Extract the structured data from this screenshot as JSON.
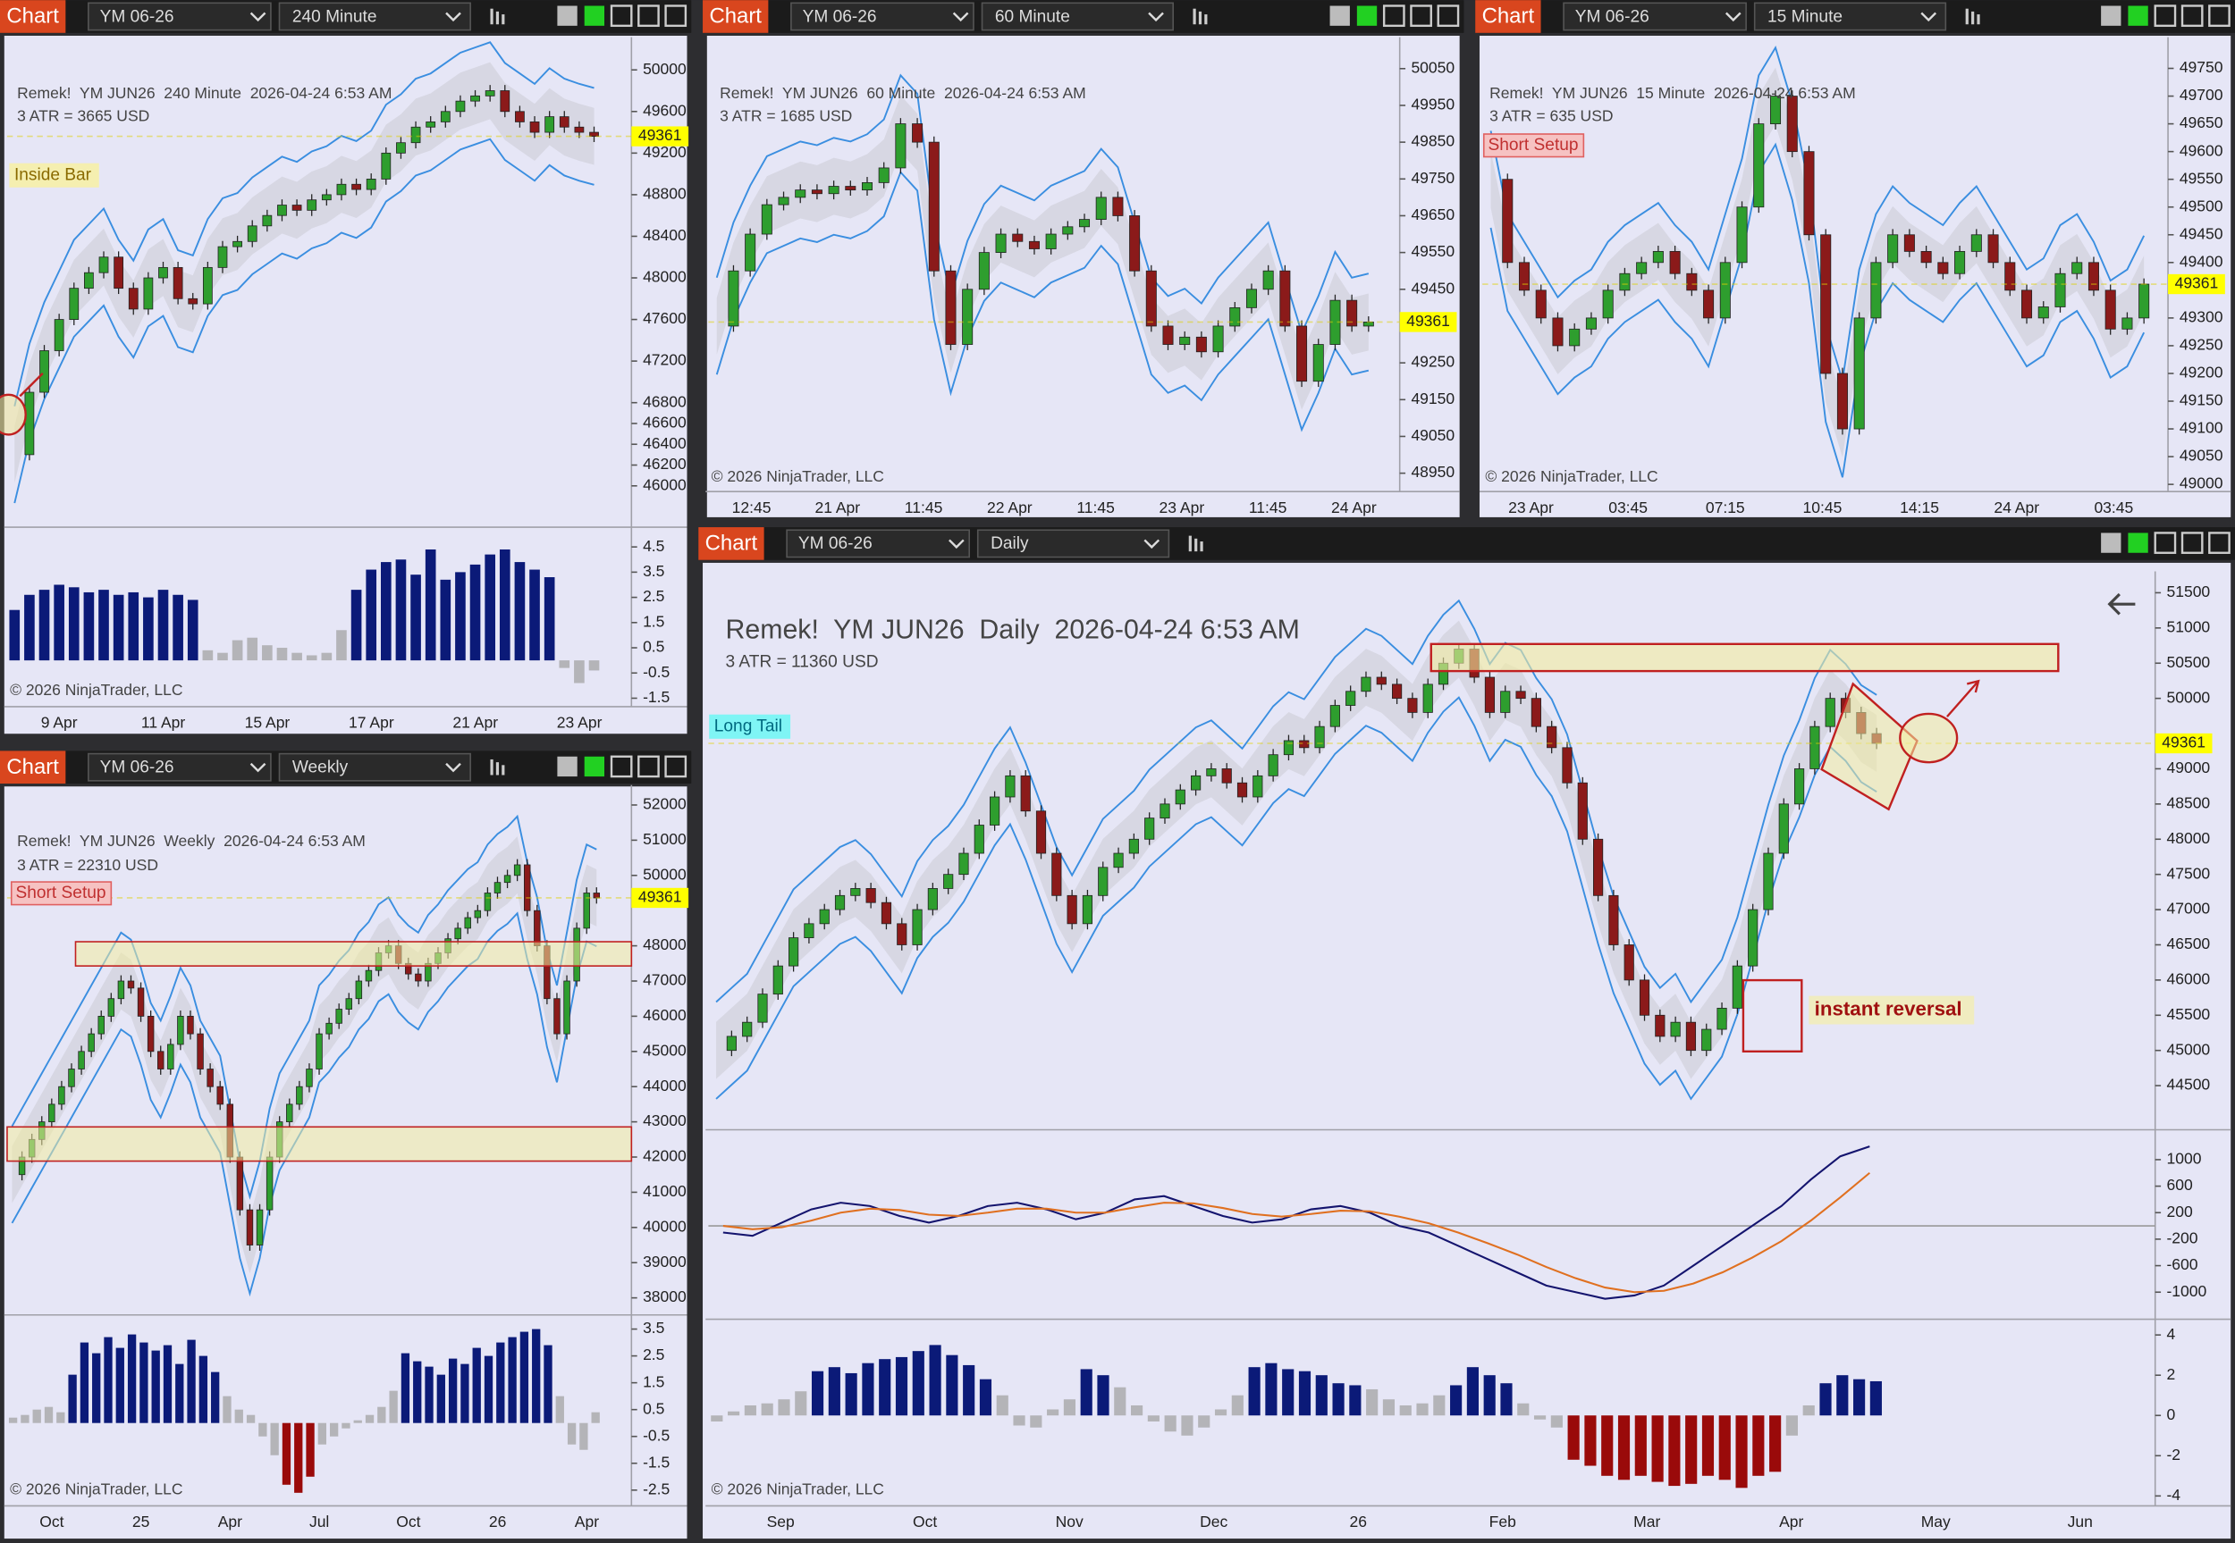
{
  "panels": [
    {
      "window": {
        "tab": "Chart",
        "instrument": "YM 06-26",
        "timeframe": "240 Minute"
      },
      "info": [
        "Remek!  YM JUN26  240 Minute  2026-04-24 6:53 AM",
        "3 ATR = 3665 USD"
      ],
      "tag": "Inside Bar",
      "price": {
        "ylim": [
          45671,
          50260
        ],
        "ticks": [
          50000,
          49600,
          49200,
          48800,
          48400,
          48000,
          47600,
          47200,
          46800,
          46600,
          46400,
          46200,
          46000
        ],
        "last": 49361,
        "closes": [
          46300,
          46900,
          47300,
          47600,
          47900,
          48050,
          48200,
          47900,
          47700,
          48000,
          48100,
          47800,
          47750,
          48100,
          48300,
          48350,
          48500,
          48600,
          48700,
          48650,
          48750,
          48800,
          48900,
          48850,
          48950,
          49200,
          49300,
          49450,
          49500,
          49600,
          49700,
          49750,
          49800,
          49600,
          49500,
          49400,
          49550,
          49450,
          49400,
          49361
        ]
      },
      "indicators": [
        {
          "ylim": [
            -1.78,
            5.17
          ],
          "ticks": [
            4.5,
            3.5,
            2.5,
            1.5,
            0.5,
            -0.5,
            -1.5
          ],
          "histogram": [
            2.0,
            2.6,
            2.8,
            3.0,
            2.9,
            2.7,
            2.8,
            2.6,
            2.7,
            2.5,
            2.8,
            2.6,
            2.4,
            0.4,
            0.3,
            0.8,
            0.9,
            0.6,
            0.5,
            0.3,
            0.2,
            0.3,
            1.2,
            2.8,
            3.6,
            3.9,
            4.0,
            3.4,
            4.4,
            3.2,
            3.5,
            3.8,
            4.2,
            4.4,
            3.9,
            3.6,
            3.3,
            -0.3,
            -0.9,
            -0.4
          ]
        }
      ],
      "time_axis": [
        "9 Apr",
        "11 Apr",
        "15 Apr",
        "17 Apr",
        "21 Apr",
        "23 Apr"
      ],
      "copyright": "© 2026 NinjaTrader, LLC"
    },
    {
      "window": {
        "tab": "Chart",
        "instrument": "YM 06-26",
        "timeframe": "60 Minute"
      },
      "info": [
        "Remek!  YM JUN26  60 Minute  2026-04-24 6:53 AM",
        "3 ATR = 1685 USD"
      ],
      "price": {
        "ylim": [
          48900,
          50120
        ],
        "ticks": [
          50050,
          49950,
          49850,
          49750,
          49650,
          49550,
          49450,
          49250,
          49150,
          49050,
          48950
        ],
        "last": 49361,
        "closes": [
          49350,
          49500,
          49600,
          49680,
          49700,
          49720,
          49710,
          49730,
          49720,
          49740,
          49780,
          49900,
          49850,
          49500,
          49300,
          49450,
          49550,
          49600,
          49580,
          49560,
          49600,
          49620,
          49640,
          49700,
          49650,
          49500,
          49350,
          49300,
          49320,
          49280,
          49350,
          49400,
          49450,
          49500,
          49350,
          49200,
          49300,
          49420,
          49350,
          49361
        ]
      },
      "time_axis": [
        "12:45",
        "21 Apr",
        "11:45",
        "22 Apr",
        "11:45",
        "23 Apr",
        "11:45",
        "24 Apr"
      ],
      "copyright": "© 2026 NinjaTrader, LLC"
    },
    {
      "window": {
        "tab": "Chart",
        "instrument": "YM 06-26",
        "timeframe": "15 Minute"
      },
      "info": [
        "Remek!  YM JUN26  15 Minute  2026-04-24 6:53 AM",
        "3 ATR = 635 USD"
      ],
      "tag": "Short Setup",
      "price": {
        "ylim": [
          48987,
          49796
        ],
        "ticks": [
          49750,
          49700,
          49650,
          49600,
          49550,
          49500,
          49450,
          49400,
          49300,
          49250,
          49200,
          49150,
          49100,
          49050,
          49000
        ],
        "last": 49361,
        "closes": [
          49550,
          49400,
          49350,
          49300,
          49250,
          49280,
          49300,
          49350,
          49380,
          49400,
          49420,
          49380,
          49350,
          49300,
          49400,
          49500,
          49650,
          49700,
          49600,
          49450,
          49200,
          49100,
          49300,
          49400,
          49450,
          49420,
          49400,
          49380,
          49420,
          49450,
          49400,
          49350,
          49300,
          49320,
          49380,
          49400,
          49350,
          49280,
          49300,
          49361
        ]
      },
      "time_axis": [
        "23 Apr",
        "03:45",
        "07:15",
        "10:45",
        "14:15",
        "24 Apr",
        "03:45"
      ],
      "copyright": "© 2026 NinjaTrader, LLC"
    },
    {
      "window": {
        "tab": "Chart",
        "instrument": "YM 06-26",
        "timeframe": "Weekly"
      },
      "info": [
        "Remek!  YM JUN26  Weekly  2026-04-24 6:53 AM",
        "3 ATR = 22310 USD"
      ],
      "tag": "Short Setup",
      "price": {
        "ylim": [
          37636,
          52405
        ],
        "ticks": [
          52000,
          51000,
          50000,
          48000,
          47000,
          46000,
          45000,
          44000,
          43000,
          42000,
          41000,
          40000,
          39000,
          38000
        ],
        "last": 49361,
        "closes": [
          41500,
          42000,
          42500,
          43000,
          43500,
          44000,
          44500,
          45000,
          45500,
          46000,
          46500,
          47000,
          46800,
          46000,
          45000,
          44500,
          45200,
          46000,
          45500,
          44500,
          44000,
          43500,
          42000,
          40500,
          39500,
          40500,
          42000,
          43000,
          43500,
          44000,
          44500,
          45500,
          45800,
          46200,
          46500,
          47000,
          47300,
          47800,
          48000,
          47500,
          47200,
          47000,
          47500,
          47800,
          48200,
          48500,
          48800,
          49000,
          49500,
          49800,
          50000,
          50300,
          49000,
          48000,
          46500,
          45500,
          47000,
          48500,
          49500,
          49361
        ]
      },
      "indicators": [
        {
          "ylim": [
            -2.98,
            3.92
          ],
          "ticks": [
            3.5,
            2.5,
            1.5,
            0.5,
            -0.5,
            -1.5,
            -2.5
          ],
          "histogram": [
            0.2,
            0.3,
            0.5,
            0.6,
            0.4,
            1.8,
            3.0,
            2.6,
            3.2,
            2.8,
            3.3,
            3.0,
            2.7,
            2.9,
            2.2,
            3.1,
            2.5,
            1.9,
            1.0,
            0.5,
            0.3,
            -0.5,
            -1.2,
            -2.3,
            -2.6,
            -2.0,
            -0.8,
            -0.5,
            -0.2,
            0.1,
            0.3,
            0.6,
            1.2,
            2.6,
            2.3,
            2.1,
            1.8,
            2.4,
            2.2,
            2.8,
            2.5,
            3.0,
            3.2,
            3.4,
            3.5,
            2.9,
            1.0,
            -0.8,
            -1.0,
            0.4
          ]
        }
      ],
      "time_axis": [
        "Oct",
        "25",
        "Apr",
        "Jul",
        "Oct",
        "26",
        "Apr"
      ],
      "copyright": "© 2026 NinjaTrader, LLC"
    },
    {
      "window": {
        "tab": "Chart",
        "instrument": "YM 06-26",
        "timeframe": "Daily"
      },
      "info": [
        "Remek!  YM JUN26  Daily  2026-04-24 6:53 AM",
        "3 ATR = 11360 USD"
      ],
      "tag": "Long Tail",
      "annotations": [
        "instant reversal"
      ],
      "price": {
        "ylim": [
          43934,
          51723
        ],
        "ticks": [
          51500,
          51000,
          50500,
          50000,
          49000,
          48500,
          48000,
          47500,
          47000,
          46500,
          46000,
          45500,
          45000,
          44500
        ],
        "last": 49361,
        "closes": [
          45000,
          45200,
          45400,
          45800,
          46200,
          46600,
          46800,
          47000,
          47200,
          47300,
          47100,
          46800,
          46500,
          47000,
          47300,
          47500,
          47800,
          48200,
          48600,
          48900,
          48400,
          47800,
          47200,
          46800,
          47200,
          47600,
          47800,
          48000,
          48300,
          48500,
          48700,
          48900,
          49000,
          48800,
          48600,
          48900,
          49200,
          49400,
          49300,
          49600,
          49900,
          50100,
          50300,
          50200,
          50000,
          49800,
          50200,
          50500,
          50700,
          50300,
          49800,
          50100,
          50000,
          49600,
          49300,
          48800,
          48000,
          47200,
          46500,
          46000,
          45500,
          45200,
          45400,
          45000,
          45300,
          45600,
          46200,
          47000,
          47800,
          48500,
          49000,
          49600,
          50000,
          49800,
          49500,
          49361
        ]
      },
      "indicators": [
        {
          "ylim": [
            -1387,
            1408
          ],
          "ticks": [
            1000,
            600,
            200,
            -200,
            -600,
            -1000
          ],
          "lines": [
            {
              "color": "#14146e",
              "values": [
                -100,
                -150,
                50,
                250,
                350,
                300,
                150,
                50,
                150,
                300,
                350,
                250,
                100,
                200,
                400,
                450,
                300,
                150,
                50,
                100,
                250,
                300,
                200,
                0,
                -100,
                -300,
                -500,
                -700,
                -900,
                -1000,
                -1100,
                -1050,
                -900,
                -600,
                -300,
                0,
                300,
                700,
                1050,
                1200
              ]
            },
            {
              "color": "#e07020",
              "values": [
                0,
                -50,
                -20,
                80,
                200,
                260,
                240,
                170,
                150,
                200,
                260,
                260,
                200,
                200,
                280,
                350,
                340,
                270,
                180,
                140,
                180,
                230,
                220,
                140,
                40,
                -100,
                -260,
                -430,
                -620,
                -790,
                -930,
                -1000,
                -980,
                -870,
                -700,
                -480,
                -230,
                80,
                430,
                800
              ]
            }
          ]
        },
        {
          "ylim": [
            -4.35,
            4.64
          ],
          "ticks": [
            4,
            2,
            0,
            -2,
            -4
          ],
          "histogram": [
            -0.3,
            0.2,
            0.5,
            0.6,
            0.8,
            1.2,
            2.2,
            2.4,
            2.1,
            2.6,
            2.8,
            2.9,
            3.2,
            3.5,
            3.0,
            2.5,
            1.8,
            1.0,
            -0.5,
            -0.6,
            0.3,
            0.8,
            2.3,
            2.0,
            1.4,
            0.5,
            -0.3,
            -0.8,
            -1.0,
            -0.6,
            0.3,
            1.0,
            2.4,
            2.6,
            2.3,
            2.2,
            2.0,
            1.6,
            1.5,
            1.3,
            0.8,
            0.5,
            0.6,
            1.0,
            1.5,
            2.4,
            2.0,
            1.6,
            0.6,
            -0.2,
            -0.6,
            -2.2,
            -2.5,
            -3.0,
            -3.2,
            -3.0,
            -3.3,
            -3.5,
            -3.4,
            -3.0,
            -3.2,
            -3.6,
            -3.0,
            -2.8,
            -1.0,
            0.5,
            1.6,
            2.0,
            1.8,
            1.7
          ]
        }
      ],
      "time_axis": [
        "Sep",
        "Oct",
        "Nov",
        "Dec",
        "26",
        "Feb",
        "Mar",
        "Apr",
        "May",
        "Jun"
      ],
      "copyright": "© 2026 NinjaTrader, LLC"
    }
  ]
}
